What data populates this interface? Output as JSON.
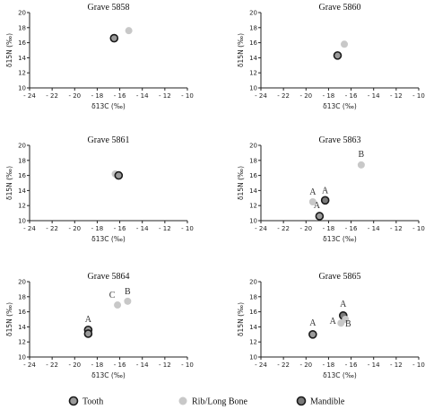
{
  "legend": {
    "items": [
      {
        "key": "tooth",
        "label": "Tooth"
      },
      {
        "key": "rib",
        "label": "Rib/Long Bone"
      },
      {
        "key": "mandible",
        "label": "Mandible"
      }
    ]
  },
  "styles": {
    "tooth": {
      "fill": "#9a9a9a",
      "stroke": "#1a1a1a"
    },
    "rib": {
      "fill": "#c8c8c8",
      "stroke": "none"
    },
    "mandible": {
      "fill": "#7a7a7a",
      "stroke": "#1a1a1a"
    }
  },
  "chart_data": [
    {
      "type": "scatter",
      "title": "Grave 5858",
      "xlabel": "δ13C (‰)",
      "ylabel": "δ15N (‰)",
      "xlim": [
        -24,
        -10
      ],
      "ylim": [
        10,
        20
      ],
      "xticks": [
        -24,
        -22,
        -20,
        -18,
        -16,
        -14,
        -12,
        -10
      ],
      "yticks": [
        10,
        12,
        14,
        16,
        18,
        20
      ],
      "points": [
        {
          "series": "tooth",
          "x": -16.5,
          "y": 16.6,
          "label": ""
        },
        {
          "series": "rib",
          "x": -15.2,
          "y": 17.6,
          "label": ""
        }
      ]
    },
    {
      "type": "scatter",
      "title": "Grave 5860",
      "xlabel": "δ13C (‰)",
      "ylabel": "δ15N (‰)",
      "xlim": [
        -24,
        -10
      ],
      "ylim": [
        10,
        20
      ],
      "xticks": [
        -24,
        -22,
        -20,
        -18,
        -16,
        -14,
        -12,
        -10
      ],
      "yticks": [
        10,
        12,
        14,
        16,
        18,
        20
      ],
      "points": [
        {
          "series": "rib",
          "x": -16.6,
          "y": 15.8,
          "label": ""
        },
        {
          "series": "tooth",
          "x": -17.2,
          "y": 14.3,
          "label": ""
        }
      ]
    },
    {
      "type": "scatter",
      "title": "Grave 5861",
      "xlabel": "δ13C (‰)",
      "ylabel": "δ15N (‰)",
      "xlim": [
        -24,
        -10
      ],
      "ylim": [
        10,
        20
      ],
      "xticks": [
        -24,
        -22,
        -20,
        -18,
        -16,
        -14,
        -12,
        -10
      ],
      "yticks": [
        10,
        12,
        14,
        16,
        18,
        20
      ],
      "points": [
        {
          "series": "rib",
          "x": -16.4,
          "y": 16.2,
          "label": ""
        },
        {
          "series": "tooth",
          "x": -16.1,
          "y": 16.0,
          "label": ""
        }
      ]
    },
    {
      "type": "scatter",
      "title": "Grave 5863",
      "xlabel": "δ13C (‰)",
      "ylabel": "δ15N (‰)",
      "xlim": [
        -24,
        -10
      ],
      "ylim": [
        10,
        20
      ],
      "xticks": [
        -24,
        -22,
        -20,
        -18,
        -16,
        -14,
        -12,
        -10
      ],
      "yticks": [
        10,
        12,
        14,
        16,
        18,
        20
      ],
      "points": [
        {
          "series": "rib",
          "x": -19.4,
          "y": 12.5,
          "label": "A"
        },
        {
          "series": "mandible",
          "x": -18.3,
          "y": 12.7,
          "label": "A"
        },
        {
          "series": "tooth",
          "x": -18.8,
          "y": 10.6,
          "label": "A"
        },
        {
          "series": "rib",
          "x": -15.1,
          "y": 17.4,
          "label": "B"
        }
      ]
    },
    {
      "type": "scatter",
      "title": "Grave 5864",
      "xlabel": "δ13C (‰)",
      "ylabel": "δ15N (‰)",
      "xlim": [
        -24,
        -10
      ],
      "ylim": [
        10,
        20
      ],
      "xticks": [
        -24,
        -22,
        -20,
        -18,
        -16,
        -14,
        -12,
        -10
      ],
      "yticks": [
        10,
        12,
        14,
        16,
        18,
        20
      ],
      "points": [
        {
          "series": "tooth",
          "x": -18.8,
          "y": 13.6,
          "label": "A"
        },
        {
          "series": "tooth",
          "x": -18.8,
          "y": 13.1,
          "label": ""
        },
        {
          "series": "rib",
          "x": -16.2,
          "y": 16.9,
          "label": "C"
        },
        {
          "series": "rib",
          "x": -15.3,
          "y": 17.4,
          "label": "B"
        }
      ]
    },
    {
      "type": "scatter",
      "title": "Grave 5865",
      "xlabel": "δ13C (‰)",
      "ylabel": "δ15N (‰)",
      "xlim": [
        -24,
        -10
      ],
      "ylim": [
        10,
        20
      ],
      "xticks": [
        -24,
        -22,
        -20,
        -18,
        -16,
        -14,
        -12,
        -10
      ],
      "yticks": [
        10,
        12,
        14,
        16,
        18,
        20
      ],
      "points": [
        {
          "series": "tooth",
          "x": -19.4,
          "y": 13.0,
          "label": "A"
        },
        {
          "series": "rib",
          "x": -16.9,
          "y": 14.5,
          "label": "A"
        },
        {
          "series": "mandible",
          "x": -16.7,
          "y": 15.5,
          "label": "A"
        },
        {
          "series": "rib",
          "x": -16.5,
          "y": 15.0,
          "label": "B"
        }
      ]
    }
  ]
}
